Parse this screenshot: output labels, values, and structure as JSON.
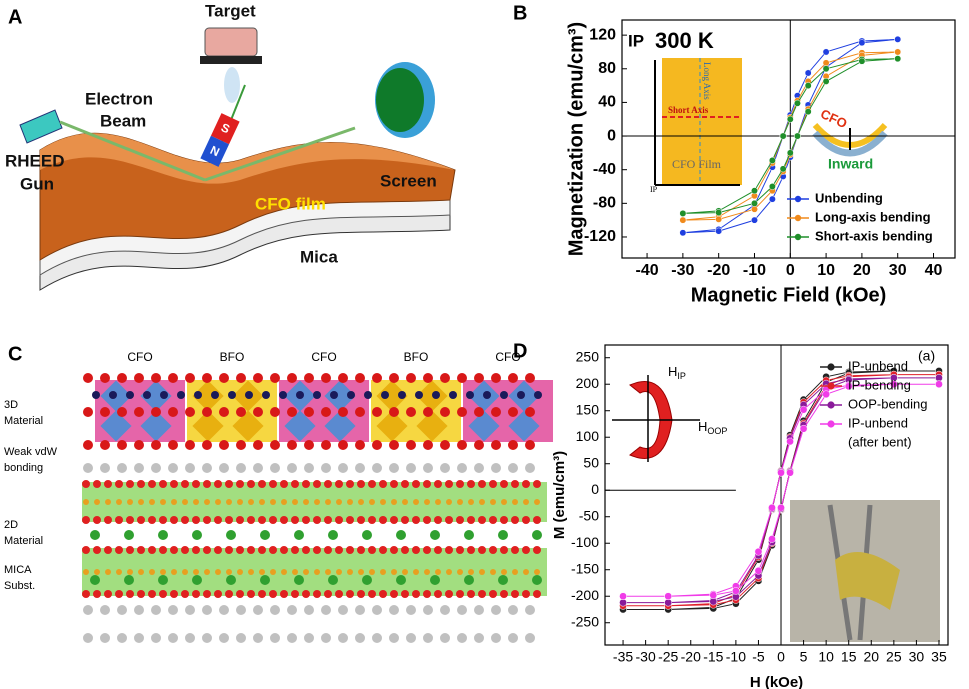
{
  "panels": {
    "a": {
      "letter": "A",
      "target": "Target",
      "beam": [
        "Electron",
        "Beam"
      ],
      "gun": [
        "RHEED",
        "Gun"
      ],
      "magnet_s": "S",
      "magnet_n": "N",
      "screen": "Screen",
      "film": "CFO film",
      "mica": "Mica"
    },
    "b": {
      "letter": "B",
      "mode": "IP",
      "temperature": "300 K",
      "inset_long": "Long Axis",
      "inset_short": "Short Axis",
      "inset_film": "CFO Film",
      "inset_ip": "IP",
      "bend_cfo": "CFO",
      "bend_inward": "Inward"
    },
    "c": {
      "letter": "C",
      "columns": [
        "CFO",
        "BFO",
        "CFO",
        "BFO",
        "CFO"
      ],
      "layers": [
        [
          "3D",
          "Material"
        ],
        [
          "Weak vdW",
          "bonding"
        ],
        [
          "2D",
          "Material"
        ],
        [
          "MICA",
          "Subst."
        ]
      ]
    },
    "d": {
      "letter": "D",
      "tag": "(a)",
      "h_ip": {
        "base": "H",
        "sub": "IP"
      },
      "h_oop": {
        "base": "H",
        "sub": "OOP"
      }
    }
  },
  "chart_data": [
    {
      "type": "scatter",
      "xlabel": "Magnetic Field (kOe)",
      "ylabel": "Magnetization (emu/cm³)",
      "x": [
        30,
        20,
        10,
        5,
        2,
        0,
        -2,
        -5,
        -10,
        -20,
        -30,
        -30,
        -20,
        -10,
        -5,
        -2,
        0,
        2,
        5,
        10,
        20,
        30
      ],
      "series": [
        {
          "name": "Unbending",
          "color": "#1f3fe0",
          "values": [
            115,
            113,
            100,
            75,
            48,
            25,
            0,
            -37,
            -82,
            -111,
            -115,
            -115,
            -113,
            -100,
            -75,
            -48,
            -25,
            0,
            37,
            82,
            111,
            115
          ]
        },
        {
          "name": "Long-axis bending",
          "color": "#f08a1c",
          "values": [
            100,
            99,
            87,
            65,
            42,
            22,
            0,
            -32,
            -71,
            -96,
            -100,
            -100,
            -99,
            -87,
            -65,
            -42,
            -22,
            0,
            32,
            71,
            96,
            100
          ]
        },
        {
          "name": "Short-axis bending",
          "color": "#1f8f2a",
          "values": [
            92,
            91,
            80,
            60,
            39,
            20,
            0,
            -29,
            -65,
            -89,
            -92,
            -92,
            -91,
            -80,
            -60,
            -39,
            -20,
            0,
            29,
            65,
            89,
            92
          ]
        }
      ],
      "xlim": [
        -47,
        46
      ],
      "ylim": [
        -145,
        138
      ],
      "xticks": [
        -40,
        -30,
        -20,
        -10,
        0,
        10,
        20,
        30,
        40
      ],
      "yticks": [
        -120,
        -80,
        -40,
        0,
        40,
        80,
        120
      ],
      "legend": "lower right"
    },
    {
      "type": "scatter",
      "xlabel": "H (kOe)",
      "ylabel": "M (emu/cm³)",
      "x": [
        35,
        25,
        15,
        10,
        5,
        2,
        0,
        -2,
        -5,
        -10,
        -15,
        -25,
        -35,
        -35,
        -25,
        -15,
        -10,
        -5,
        -2,
        0,
        2,
        5,
        10,
        15,
        25,
        35
      ],
      "series": [
        {
          "name": "IP-unbend",
          "color": "#222222",
          "values": [
            225,
            225,
            223,
            214,
            171,
            104,
            37,
            -37,
            -131,
            -204,
            -221,
            -225,
            -225,
            -225,
            -225,
            -223,
            -214,
            -171,
            -104,
            -37,
            37,
            131,
            204,
            221,
            225,
            225
          ]
        },
        {
          "name": "IP-bending",
          "color": "#e0202a",
          "values": [
            218,
            218,
            216,
            207,
            166,
            100,
            36,
            -36,
            -126,
            -197,
            -214,
            -218,
            -218,
            -218,
            -218,
            -216,
            -207,
            -166,
            -100,
            -36,
            36,
            126,
            197,
            214,
            218,
            218
          ]
        },
        {
          "name": "OOP-bending",
          "color": "#8a1a9a",
          "values": [
            212,
            212,
            210,
            201,
            161,
            98,
            35,
            -35,
            -123,
            -192,
            -208,
            -212,
            -212,
            -212,
            -212,
            -210,
            -201,
            -161,
            -98,
            -35,
            35,
            123,
            192,
            208,
            212,
            212
          ]
        },
        {
          "name": [
            "IP-unbend",
            "(after bent)"
          ],
          "color": "#f03ce8",
          "values": [
            200,
            200,
            198,
            190,
            152,
            92,
            33,
            -33,
            -116,
            -181,
            -196,
            -200,
            -200,
            -200,
            -200,
            -198,
            -190,
            -152,
            -92,
            -33,
            33,
            116,
            181,
            196,
            200,
            200
          ]
        }
      ],
      "xlim": [
        -39,
        37
      ],
      "ylim": [
        -292,
        274
      ],
      "xticks": [
        -35,
        -30,
        -25,
        -20,
        -15,
        -10,
        -5,
        0,
        5,
        10,
        15,
        20,
        25,
        30,
        35
      ],
      "yticks": [
        -250,
        -200,
        -150,
        -100,
        -50,
        0,
        50,
        100,
        150,
        200,
        250
      ],
      "legend": "upper right"
    }
  ]
}
